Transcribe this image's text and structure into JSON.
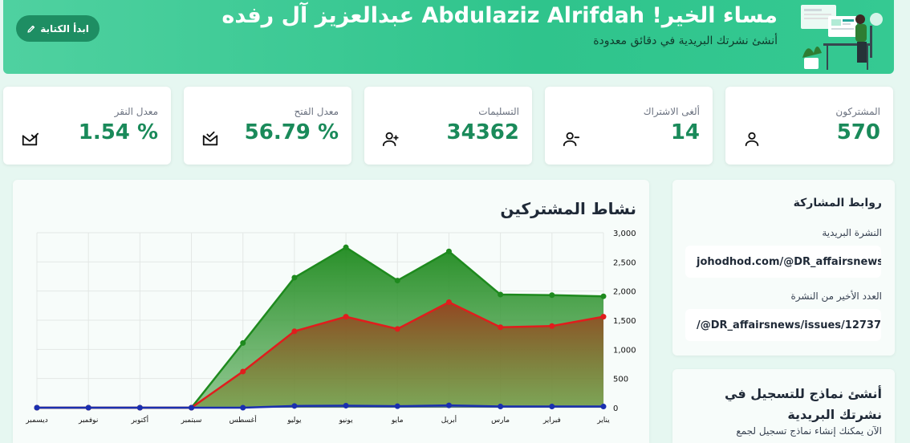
{
  "header": {
    "greeting": "مساء الخير! Abdulaziz Alrifdah عبدالعزيز آل رفده",
    "subtitle": "أنشئ نشرتك البريدية في دقائق معدودة",
    "start_button": "ابدأ الكتابة"
  },
  "stats": [
    {
      "label": "المشتركون",
      "value": "570",
      "icon": "user-icon"
    },
    {
      "label": "ألغى الاشتراك",
      "value": "14",
      "icon": "user-minus-icon"
    },
    {
      "label": "التسليمات",
      "value": "34362",
      "icon": "user-plus-icon"
    },
    {
      "label": "معدل الفتح",
      "value": "% 56.79",
      "icon": "mail-open-icon"
    },
    {
      "label": "معدل النقر",
      "value": "% 1.54",
      "icon": "mail-click-icon"
    }
  ],
  "chart_title": "نشاط المشتركين",
  "chart_data": {
    "type": "area",
    "categories": [
      "يناير",
      "فبراير",
      "مارس",
      "أبريل",
      "مايو",
      "يونيو",
      "يوليو",
      "أغسطس",
      "سبتمبر",
      "أكتوبر",
      "نوفمبر",
      "ديسمبر"
    ],
    "ylim": [
      0,
      3000
    ],
    "yticks": [
      "0",
      "500",
      "1,000",
      "1,500",
      "2,000",
      "2,500",
      "3,000"
    ],
    "ytick_values": [
      0,
      500,
      1000,
      1500,
      2000,
      2500,
      3000
    ],
    "grid": true,
    "series": [
      {
        "values": [
          1910,
          1930,
          1940,
          2680,
          2180,
          2750,
          2230,
          1110,
          0,
          0,
          0,
          0
        ],
        "color": "#1e8a1e"
      },
      {
        "values": [
          1560,
          1400,
          1380,
          1810,
          1350,
          1560,
          1310,
          620,
          0,
          0,
          0,
          0
        ],
        "color": "#e01d1d"
      },
      {
        "values": [
          20,
          20,
          20,
          40,
          25,
          35,
          30,
          0,
          0,
          0,
          0,
          0
        ],
        "color": "#1a2fb0"
      }
    ]
  },
  "share": {
    "title": "روابط المشاركة",
    "newsletter_label": "النشرة البريدية",
    "newsletter_link": "johodhod.com/@DR_affairsnews",
    "latest_label": "العدد الأخير من النشرة",
    "latest_link": "/@DR_affairsnews/issues/12737"
  },
  "forms": {
    "title": "أنشئ نماذج للتسجيل في نشرتك البريدية",
    "subtitle": "الآن يمكنك إنشاء نماذج تسجيل لجمع"
  }
}
